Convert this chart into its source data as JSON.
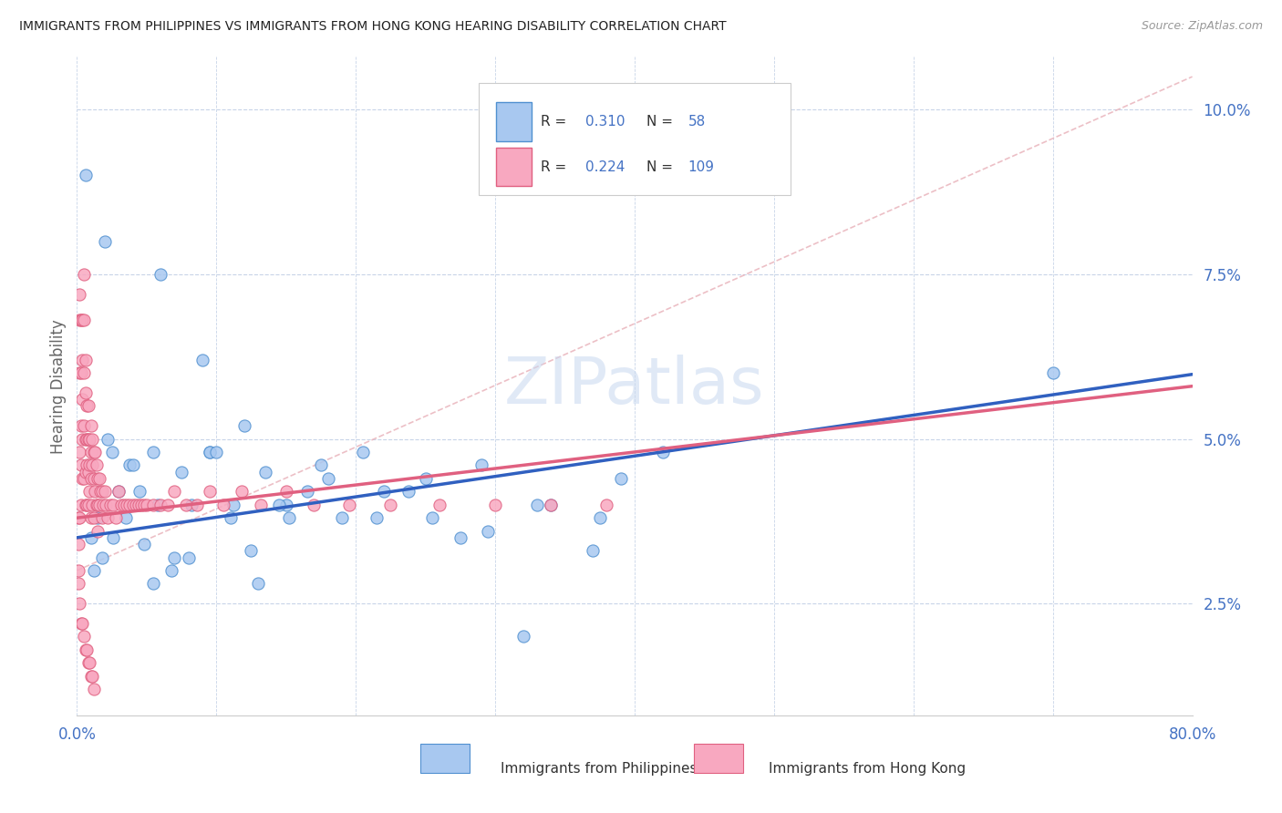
{
  "title": "IMMIGRANTS FROM PHILIPPINES VS IMMIGRANTS FROM HONG KONG HEARING DISABILITY CORRELATION CHART",
  "source": "Source: ZipAtlas.com",
  "xlabel_philippines": "Immigrants from Philippines",
  "xlabel_hongkong": "Immigrants from Hong Kong",
  "ylabel": "Hearing Disability",
  "xlim": [
    0.0,
    0.8
  ],
  "ylim": [
    0.008,
    0.108
  ],
  "yticks": [
    0.025,
    0.05,
    0.075,
    0.1
  ],
  "R_philippines": 0.31,
  "N_philippines": 58,
  "R_hongkong": 0.224,
  "N_hongkong": 109,
  "color_philippines": "#a8c8f0",
  "color_hongkong": "#f8a8c0",
  "color_edge_philippines": "#5090d0",
  "color_edge_hongkong": "#e06080",
  "color_trendline_philippines": "#3060c0",
  "color_trendline_hongkong": "#e06080",
  "color_refline": "#d0a0a0",
  "color_axis_blue": "#4472c4",
  "color_title": "#333333",
  "background_color": "#ffffff",
  "grid_color": "#c8d4e8",
  "watermark_color": "#c8d8f0"
}
